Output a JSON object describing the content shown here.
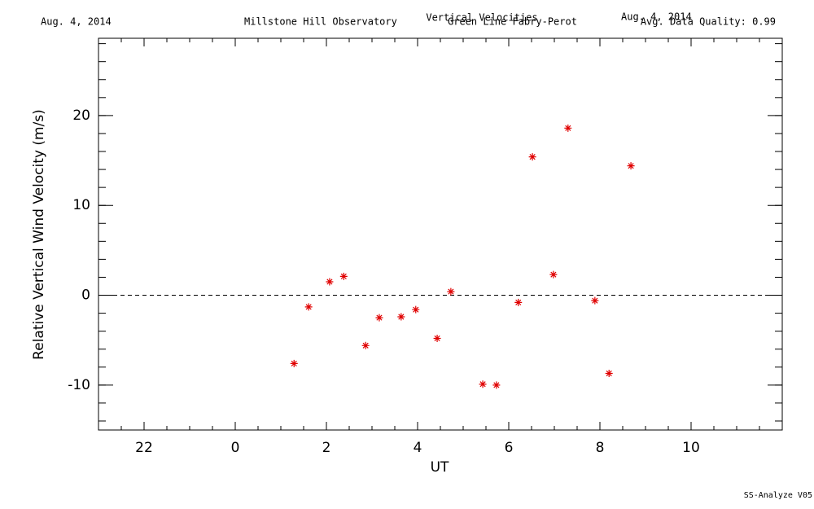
{
  "chart_data": {
    "type": "scatter",
    "title": "Vertical Velocities",
    "subtitle": "Green Line Fabry-Perot",
    "annotations": [
      "Aug. 4, 2014",
      "Millstone Hill Observatory",
      "Aug. 4, 2014",
      "Avg. Data Quality: 0.99",
      "SS-Analyze V05"
    ],
    "xlabel": "UT",
    "ylabel": "Relative Vertical Wind Velocity (m/s)",
    "x": [
      1.29,
      1.61,
      2.07,
      2.38,
      2.86,
      3.16,
      3.64,
      3.96,
      4.43,
      4.73,
      5.43,
      5.73,
      6.21,
      6.52,
      6.98,
      7.3,
      7.89,
      8.2,
      8.68
    ],
    "values": [
      -7.6,
      -1.3,
      1.5,
      2.1,
      -5.6,
      -2.5,
      -2.4,
      -1.6,
      -4.8,
      0.4,
      -9.9,
      -10.0,
      -0.8,
      15.4,
      2.3,
      18.6,
      -0.6,
      -8.7,
      14.4
    ],
    "color": "#e00000",
    "xlim": [
      -3,
      12
    ],
    "xticks": [
      {
        "value": -2,
        "label": "22"
      },
      0,
      2,
      4,
      6,
      8,
      10
    ],
    "ylim": [
      -15,
      28.6
    ],
    "yticks": [
      -10,
      0,
      10,
      20
    ],
    "xminor": 4,
    "yminor": 5,
    "hline": 0,
    "grid": false
  }
}
